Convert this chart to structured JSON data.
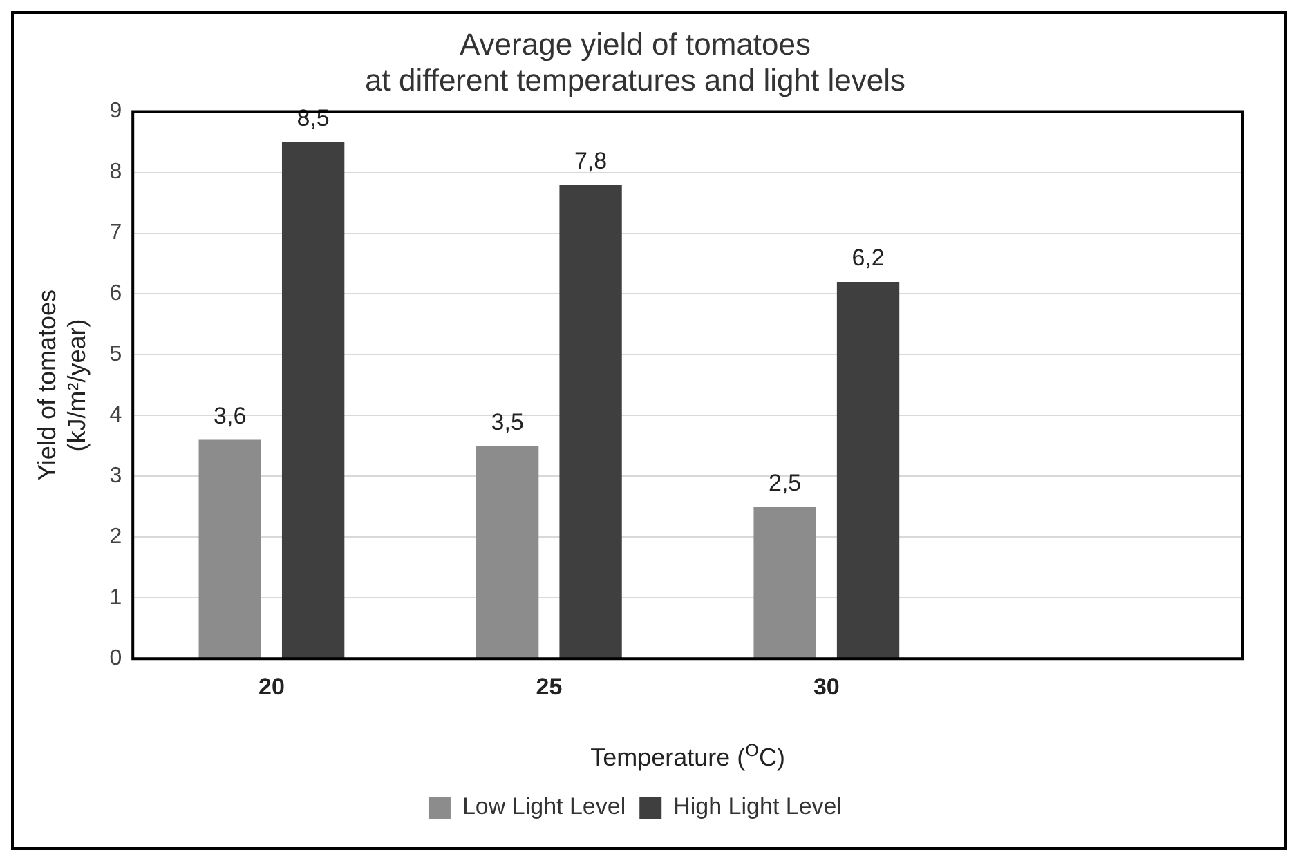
{
  "chart_data": {
    "type": "bar",
    "title": "Average yield of tomatoes\nat different temperatures and light levels",
    "xlabel": "Temperature ($^{O}$C)",
    "ylabel": "Yield of tomatoes\n(kJ/m²/year)",
    "categories": [
      "20",
      "25",
      "30",
      null
    ],
    "series": [
      {
        "name": "Low Light Level",
        "color": "#8c8c8c",
        "values": [
          3.6,
          3.5,
          2.5,
          null
        ],
        "value_labels": [
          "3,6",
          "3,5",
          "2,5",
          null
        ]
      },
      {
        "name": "High Light Level",
        "color": "#3f3f3f",
        "values": [
          8.5,
          7.8,
          6.2,
          null
        ],
        "value_labels": [
          "8,5",
          "7,8",
          "6,2",
          null
        ]
      }
    ],
    "ylim": [
      0,
      9
    ],
    "yticks": [
      0,
      1,
      2,
      3,
      4,
      5,
      6,
      7,
      8,
      9
    ],
    "grid": "y",
    "legend": "bottom"
  }
}
